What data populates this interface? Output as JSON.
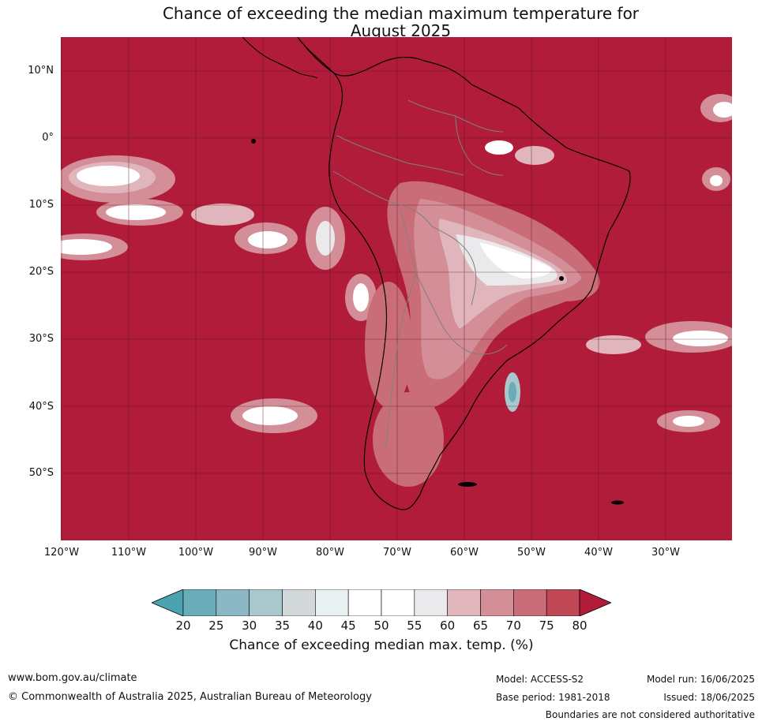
{
  "title": {
    "line1": "Chance of exceeding the median maximum temperature for",
    "line2": "August 2025"
  },
  "map": {
    "region": "South America",
    "background_color": "#b01c3a",
    "lat_labels": [
      "10°N",
      "0°",
      "10°S",
      "20°S",
      "30°S",
      "40°S",
      "50°S"
    ],
    "lon_labels": [
      "120°W",
      "110°W",
      "100°W",
      "90°W",
      "80°W",
      "70°W",
      "60°W",
      "50°W",
      "40°W",
      "30°W"
    ]
  },
  "colorbar": {
    "ticks": [
      "20",
      "25",
      "30",
      "35",
      "40",
      "45",
      "50",
      "55",
      "60",
      "65",
      "70",
      "75",
      "80"
    ],
    "colors": [
      "#6aadb9",
      "#8bb8c4",
      "#a9c8cc",
      "#d3d9db",
      "#e9f0f2",
      "#ffffff",
      "#ffffff",
      "#eaeaec",
      "#e1b5bc",
      "#d38e98",
      "#c96d78",
      "#bf4756"
    ],
    "under_color": "#4ba2b0",
    "over_color": "#b01c3a",
    "label": "Chance of exceeding median max. temp. (%)"
  },
  "footer": {
    "website": "www.bom.gov.au/climate",
    "copyright": "© Commonwealth of Australia 2025, Australian Bureau of Meteorology",
    "model": "Model: ACCESS-S2",
    "base_period": "Base period: 1981-2018",
    "model_run": "Model run: 16/06/2025",
    "issued": "Issued: 18/06/2025",
    "disclaimer": "Boundaries are not considered authoritative"
  }
}
